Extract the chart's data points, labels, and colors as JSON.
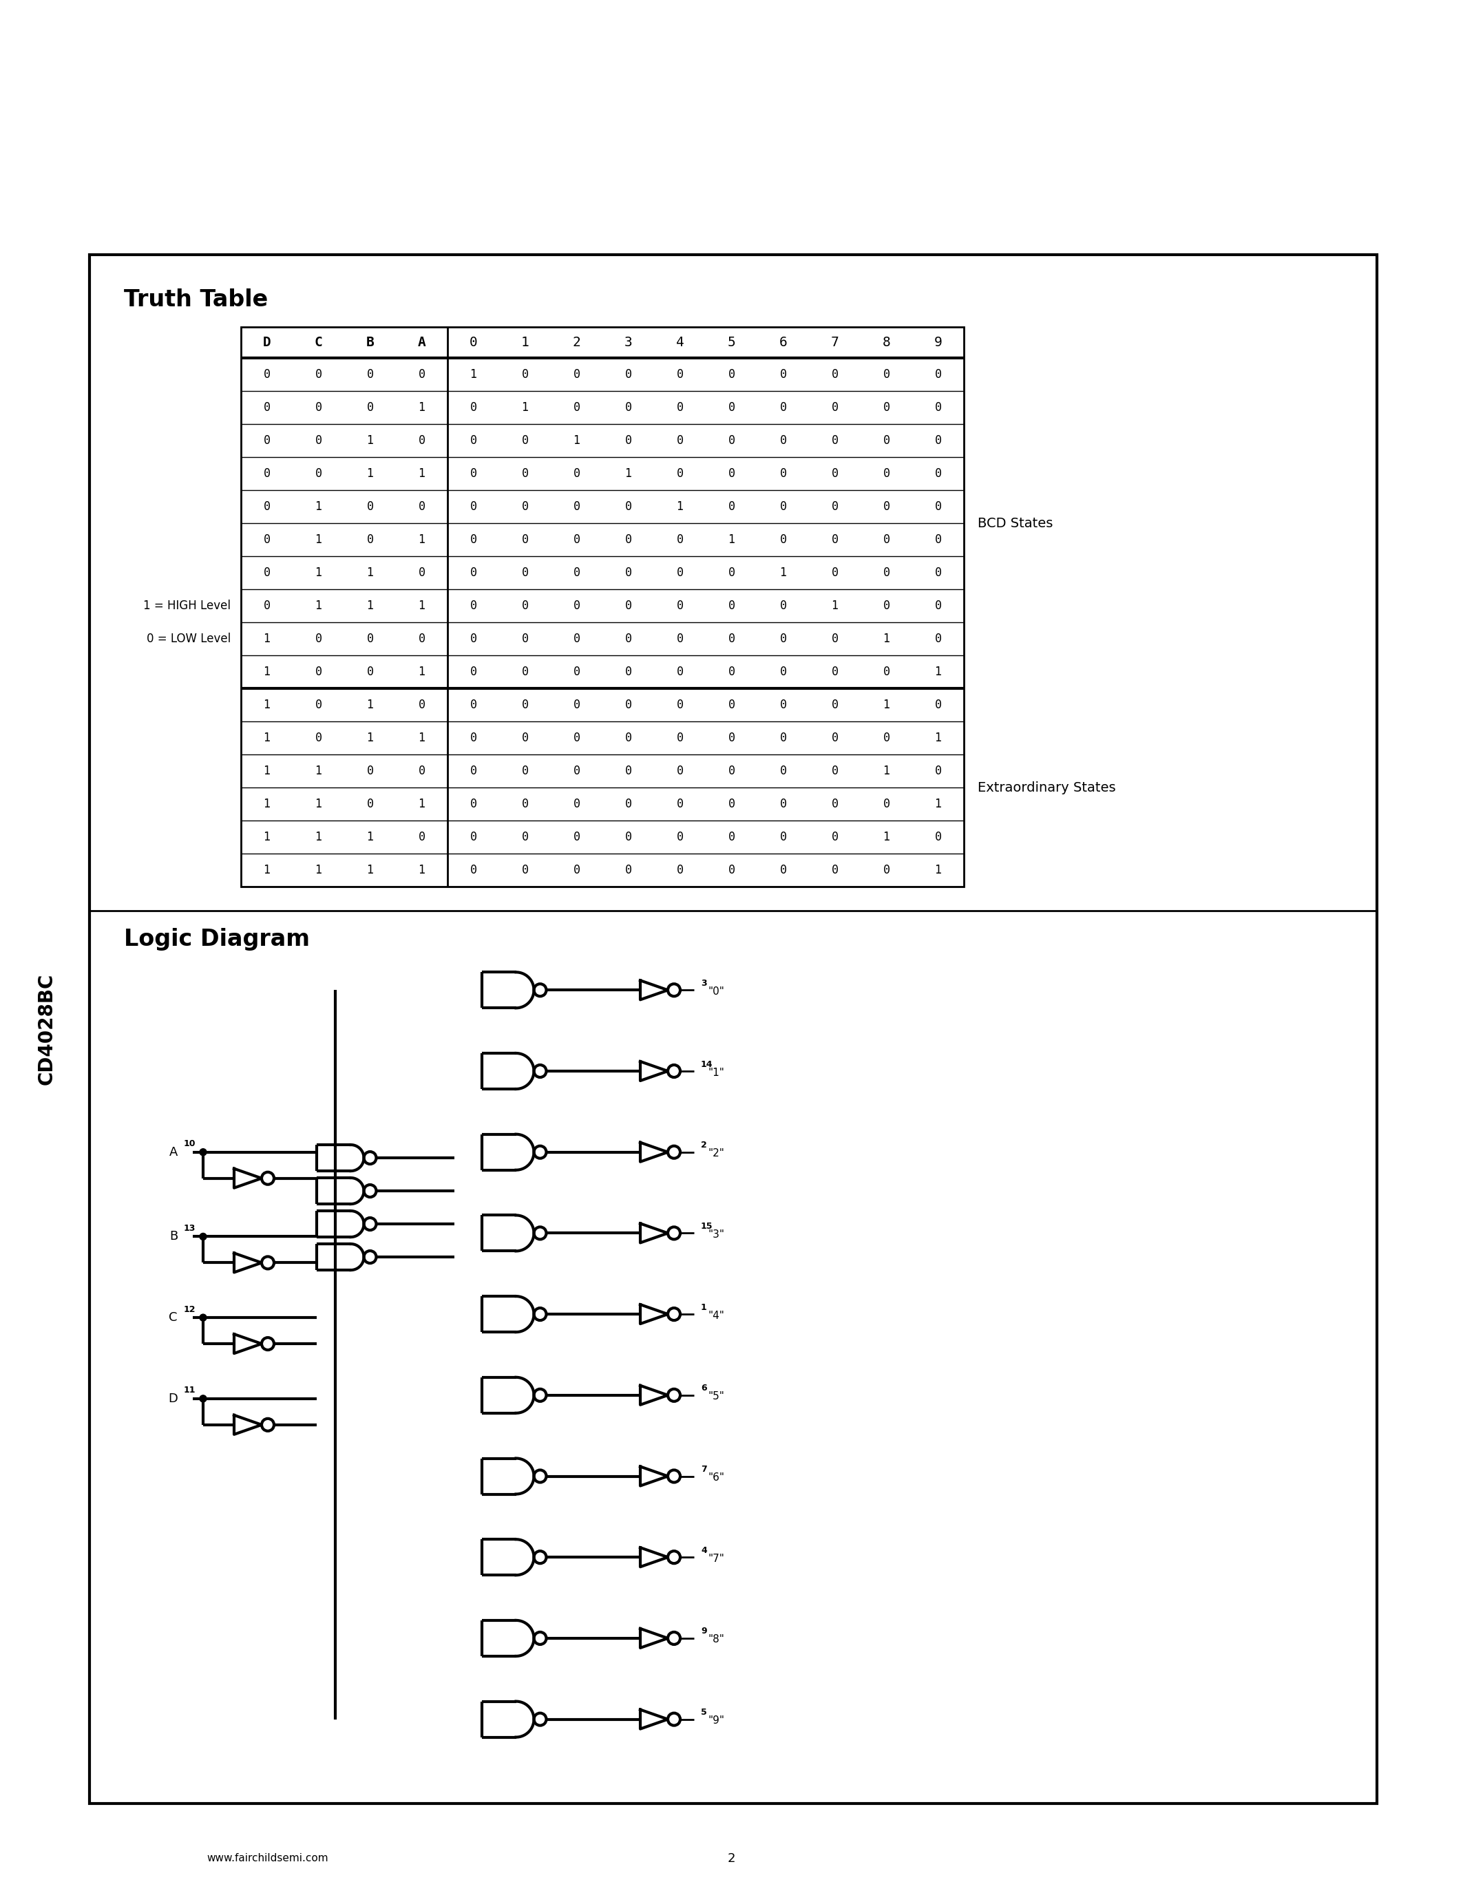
{
  "page_title": "CD4028BC",
  "truth_table_title": "Truth Table",
  "logic_diagram_title": "Logic Diagram",
  "footer_url": "www.fairchildsemi.com",
  "footer_page": "2",
  "table_headers": [
    "D",
    "C",
    "B",
    "A",
    "0",
    "1",
    "2",
    "3",
    "4",
    "5",
    "6",
    "7",
    "8",
    "9"
  ],
  "table_data": [
    [
      0,
      0,
      0,
      0,
      1,
      0,
      0,
      0,
      0,
      0,
      0,
      0,
      0,
      0
    ],
    [
      0,
      0,
      0,
      1,
      0,
      1,
      0,
      0,
      0,
      0,
      0,
      0,
      0,
      0
    ],
    [
      0,
      0,
      1,
      0,
      0,
      0,
      1,
      0,
      0,
      0,
      0,
      0,
      0,
      0
    ],
    [
      0,
      0,
      1,
      1,
      0,
      0,
      0,
      1,
      0,
      0,
      0,
      0,
      0,
      0
    ],
    [
      0,
      1,
      0,
      0,
      0,
      0,
      0,
      0,
      1,
      0,
      0,
      0,
      0,
      0
    ],
    [
      0,
      1,
      0,
      1,
      0,
      0,
      0,
      0,
      0,
      1,
      0,
      0,
      0,
      0
    ],
    [
      0,
      1,
      1,
      0,
      0,
      0,
      0,
      0,
      0,
      0,
      1,
      0,
      0,
      0
    ],
    [
      0,
      1,
      1,
      1,
      0,
      0,
      0,
      0,
      0,
      0,
      0,
      1,
      0,
      0
    ],
    [
      1,
      0,
      0,
      0,
      0,
      0,
      0,
      0,
      0,
      0,
      0,
      0,
      1,
      0
    ],
    [
      1,
      0,
      0,
      1,
      0,
      0,
      0,
      0,
      0,
      0,
      0,
      0,
      0,
      1
    ],
    [
      1,
      0,
      1,
      0,
      0,
      0,
      0,
      0,
      0,
      0,
      0,
      0,
      1,
      0
    ],
    [
      1,
      0,
      1,
      1,
      0,
      0,
      0,
      0,
      0,
      0,
      0,
      0,
      0,
      1
    ],
    [
      1,
      1,
      0,
      0,
      0,
      0,
      0,
      0,
      0,
      0,
      0,
      0,
      1,
      0
    ],
    [
      1,
      1,
      0,
      1,
      0,
      0,
      0,
      0,
      0,
      0,
      0,
      0,
      0,
      1
    ],
    [
      1,
      1,
      1,
      0,
      0,
      0,
      0,
      0,
      0,
      0,
      0,
      0,
      1,
      0
    ],
    [
      1,
      1,
      1,
      1,
      0,
      0,
      0,
      0,
      0,
      0,
      0,
      0,
      0,
      1
    ]
  ],
  "bcd_states_label": "BCD States",
  "extraordinary_states_label": "Extraordinary States",
  "label_high": "1 = HIGH Level",
  "label_low": "0 = LOW Level",
  "bg_color": "#ffffff",
  "border_color": "#000000",
  "text_color": "#000000"
}
